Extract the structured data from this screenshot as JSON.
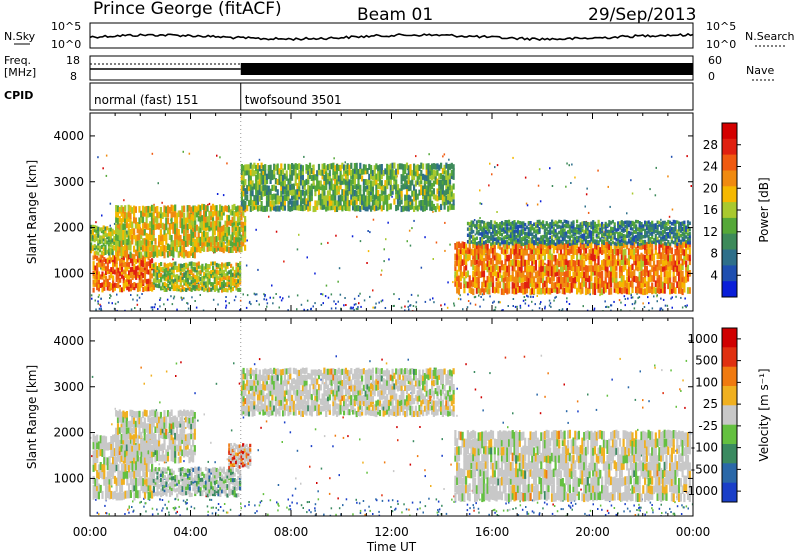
{
  "header": {
    "station": "Prince George (fitACF)",
    "beam": "Beam 01",
    "date": "29/Sep/2013"
  },
  "strip_labels": {
    "nsky": "N.Sky",
    "nsearch": "N.Search",
    "freq": "Freq.",
    "mhz": "[MHz]",
    "nave": "Nave",
    "cpid": "CPID",
    "noise_top": "10^5",
    "noise_bottom": "10^0",
    "freq_top": "18",
    "freq_bottom": "8",
    "nave_top": "60",
    "nave_bottom": "0"
  },
  "cpid_modes": [
    {
      "label": "normal (fast) 151",
      "start_hour": 0,
      "end_hour": 6
    },
    {
      "label": "twofsound 3501",
      "start_hour": 6,
      "end_hour": 24
    }
  ],
  "colors": {
    "power": [
      "#0a1fd8",
      "#1f4fb0",
      "#2e6f8a",
      "#3d8a5a",
      "#55a838",
      "#a9c92e",
      "#f5b800",
      "#f08a10",
      "#f05a10",
      "#e02010",
      "#d40000"
    ],
    "velocity": [
      "#1a3fc8",
      "#2a68a8",
      "#3a8a60",
      "#64c040",
      "#c8c8c8",
      "#f0b020",
      "#f07a10",
      "#e03010",
      "#d00000"
    ],
    "ground_scatter": "#c8c8c8"
  },
  "chart_data": [
    {
      "type": "heatmap",
      "name": "power",
      "ylabel": "Slant Range [km]",
      "xlabel": "",
      "xlim": [
        0,
        24
      ],
      "ylim": [
        180,
        4500
      ],
      "yticks": [
        "1000",
        "2000",
        "3000",
        "4000"
      ],
      "colorbar": {
        "label": "Power [dB]",
        "range": [
          0,
          32
        ],
        "ticks": [
          "4",
          "8",
          "12",
          "16",
          "20",
          "24",
          "28"
        ]
      },
      "regions": [
        {
          "t0": 0.1,
          "t1": 2.5,
          "r0": 720,
          "r1": 1500,
          "level": 0.72
        },
        {
          "t0": 0.0,
          "t1": 1.5,
          "r0": 1500,
          "r1": 2100,
          "level": 0.45
        },
        {
          "t0": 1.0,
          "t1": 4.2,
          "r0": 1500,
          "r1": 2600,
          "level": 0.55
        },
        {
          "t0": 2.5,
          "t1": 6.0,
          "r0": 700,
          "r1": 1300,
          "level": 0.5
        },
        {
          "t0": 4.0,
          "t1": 6.2,
          "r0": 1600,
          "r1": 2600,
          "level": 0.55
        },
        {
          "t0": 6.0,
          "t1": 14.5,
          "r0": 2500,
          "r1": 3500,
          "level": 0.4
        },
        {
          "t0": 14.5,
          "t1": 23.9,
          "r0": 700,
          "r1": 1800,
          "level": 0.7
        },
        {
          "t0": 15.0,
          "t1": 23.9,
          "r0": 1700,
          "r1": 2200,
          "level": 0.3
        }
      ]
    },
    {
      "type": "heatmap",
      "name": "velocity",
      "ylabel": "Slant Range [km]",
      "xlabel": "Time UT",
      "xlim": [
        0,
        24
      ],
      "ylim": [
        180,
        4500
      ],
      "yticks": [
        "1000",
        "2000",
        "3000",
        "4000"
      ],
      "xticks": [
        "00:00",
        "04:00",
        "08:00",
        "12:00",
        "16:00",
        "20:00",
        "00:00"
      ],
      "colorbar": {
        "label": "Velocity [m s⁻¹]",
        "ticks": [
          "1000",
          "500",
          "100",
          "25",
          "-25",
          "-100",
          "-500",
          "-1000"
        ]
      },
      "regions": [
        {
          "t0": 0.1,
          "t1": 2.5,
          "r0": 720,
          "r1": 2100,
          "level": 0.5
        },
        {
          "t0": 1.0,
          "t1": 4.2,
          "r0": 1500,
          "r1": 2600,
          "level": 0.5
        },
        {
          "t0": 2.5,
          "t1": 6.0,
          "r0": 700,
          "r1": 1300,
          "level": 0.35
        },
        {
          "t0": 5.5,
          "t1": 6.4,
          "r0": 1300,
          "r1": 1800,
          "level": 0.78
        },
        {
          "t0": 6.0,
          "t1": 14.5,
          "r0": 2500,
          "r1": 3500,
          "level": 0.5
        },
        {
          "t0": 14.5,
          "t1": 23.9,
          "r0": 700,
          "r1": 2200,
          "level": 0.5
        }
      ]
    }
  ]
}
